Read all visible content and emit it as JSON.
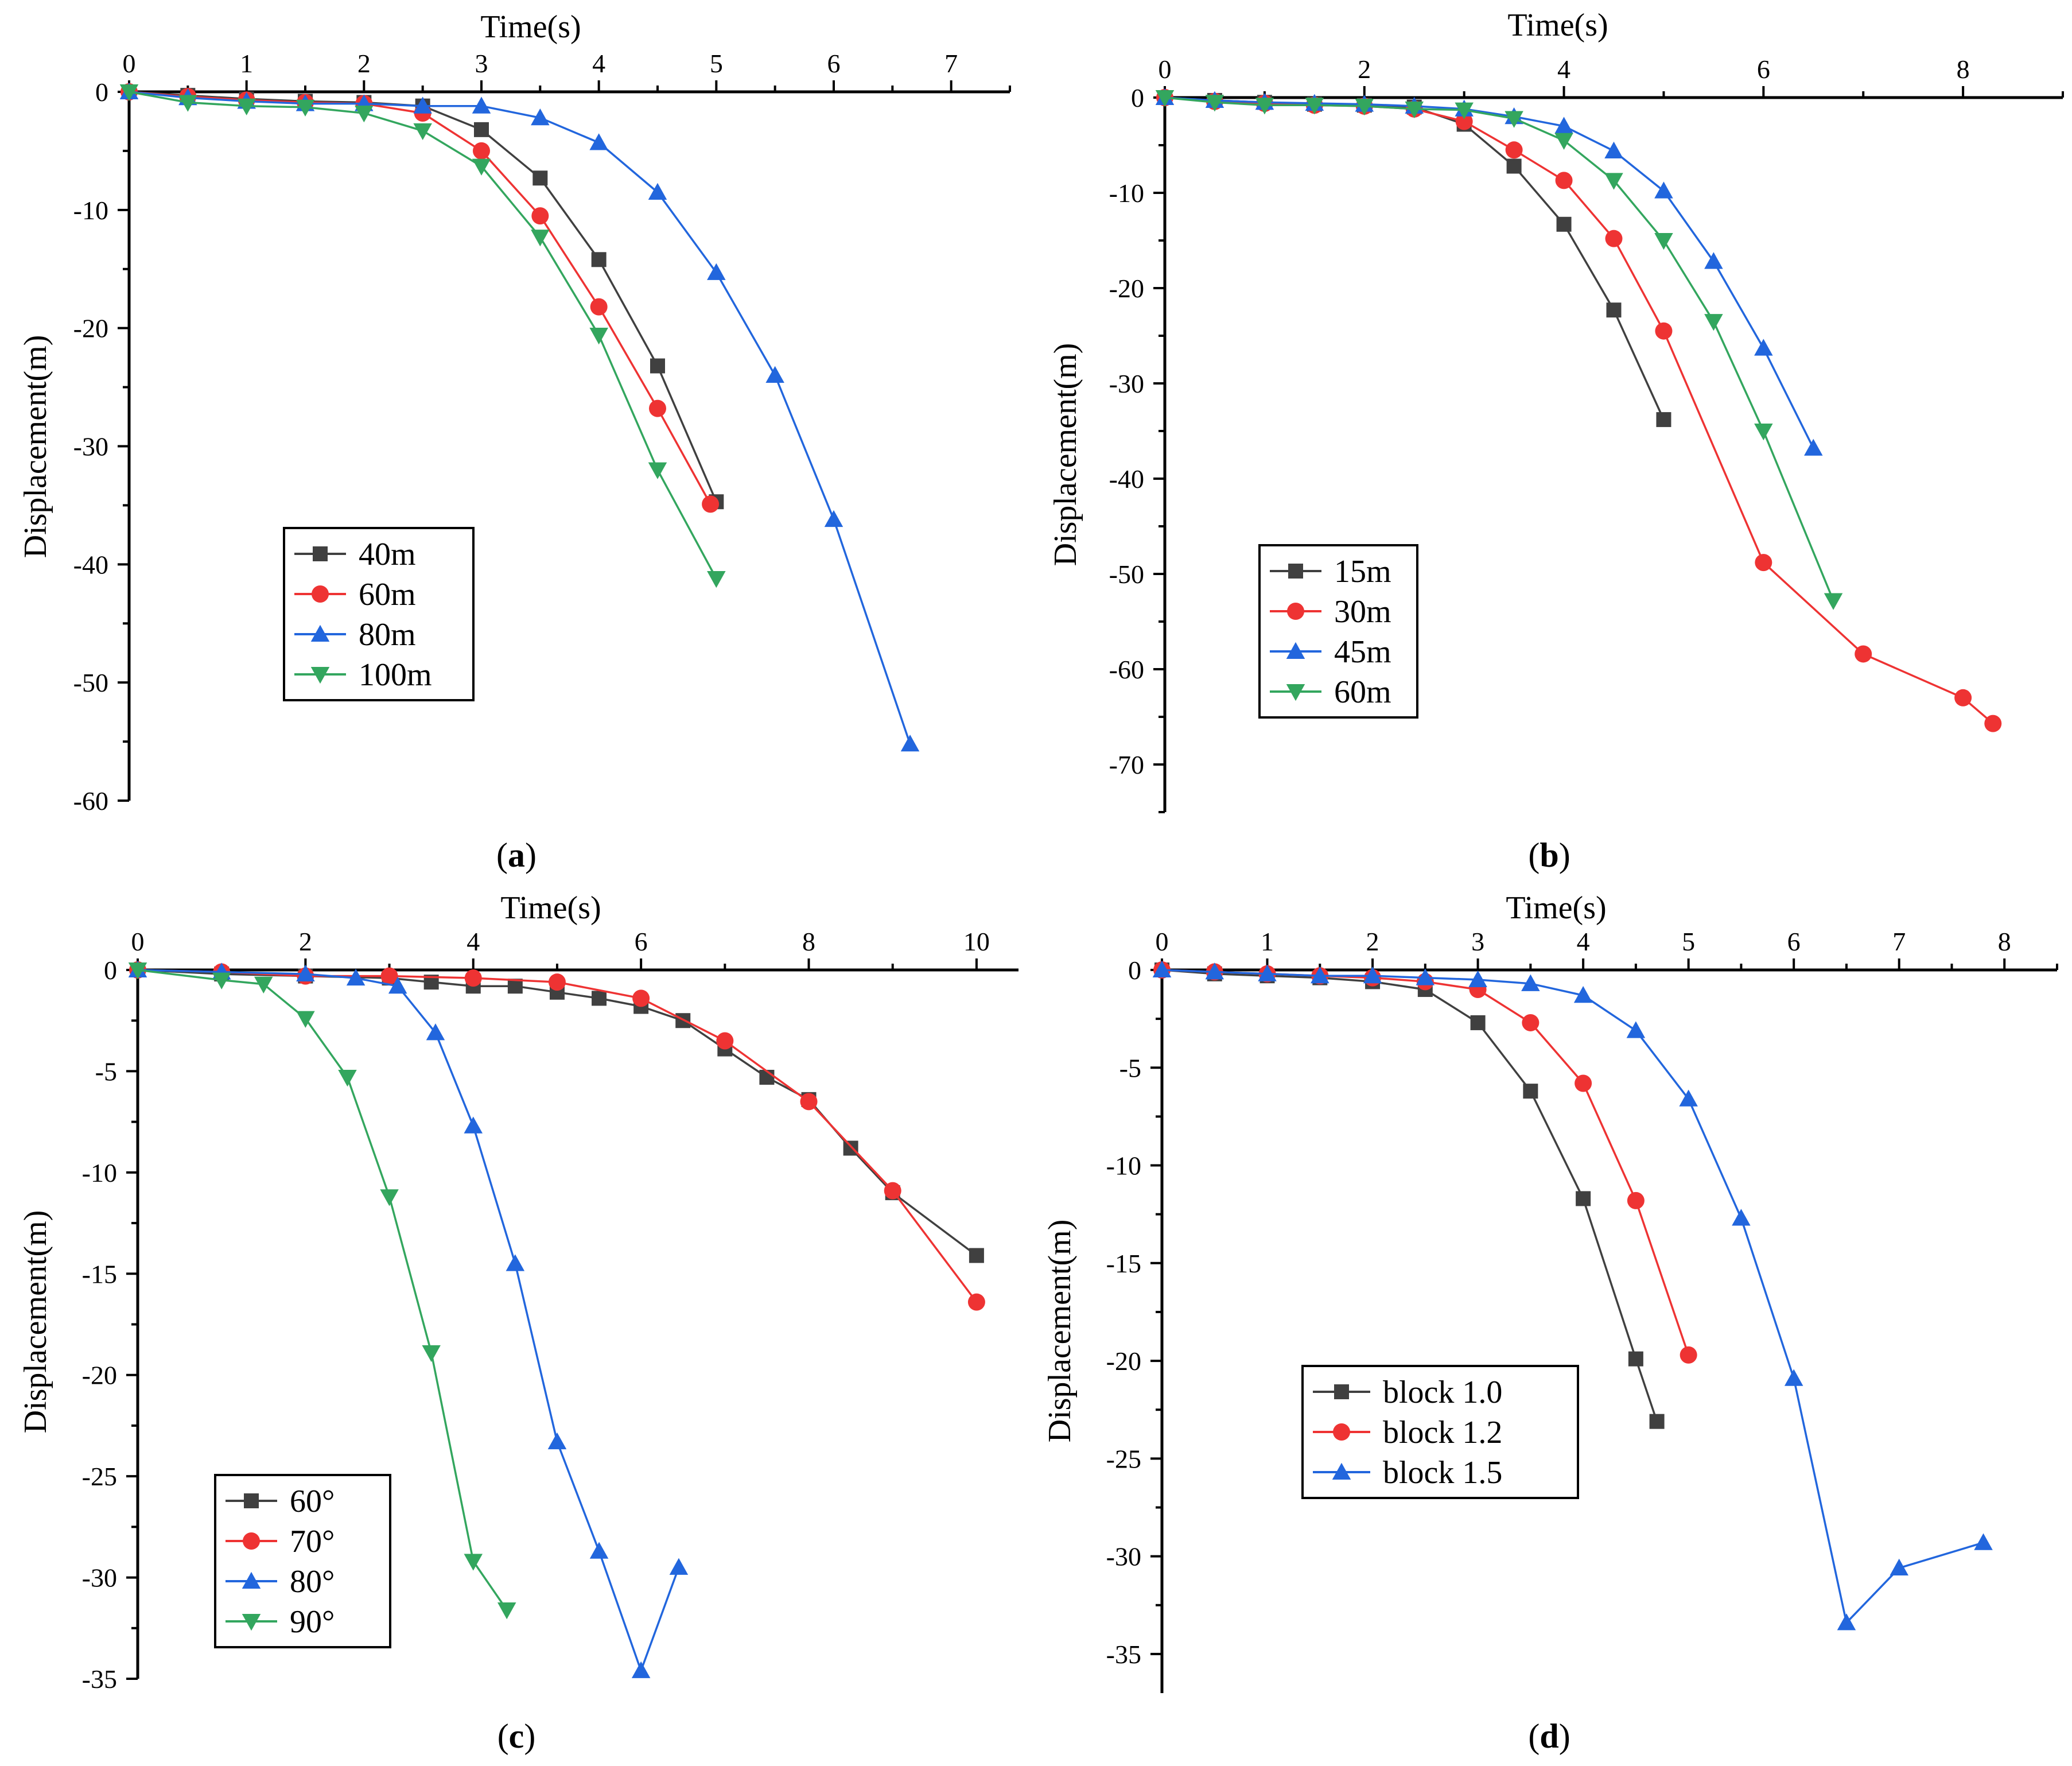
{
  "figure": {
    "colors": {
      "black": "#404040",
      "red": "#ee3333",
      "blue": "#2266dd",
      "green": "#33a65e"
    }
  },
  "chart_data": [
    {
      "panel": "(a)",
      "panel_letter": "a",
      "type": "line",
      "xlabel": "Time(s)",
      "ylabel": "Displacement(m)",
      "xlim": [
        0,
        7.5
      ],
      "ylim": [
        -60,
        0
      ],
      "xticks": [
        0,
        1,
        2,
        3,
        4,
        5,
        6,
        7
      ],
      "yticks": [
        0,
        -10,
        -20,
        -30,
        -40,
        -50,
        -60
      ],
      "legend_font": "serif",
      "series": [
        {
          "name": "40m",
          "color": "#404040",
          "marker": "square",
          "x": [
            0,
            0.5,
            1,
            1.5,
            2,
            2.5,
            3,
            3.5,
            4,
            4.5,
            5
          ],
          "y": [
            0,
            -0.3,
            -0.6,
            -0.8,
            -0.9,
            -1.2,
            -3.2,
            -7.3,
            -14.2,
            -23.2,
            -34.7
          ]
        },
        {
          "name": "60m",
          "color": "#ee3333",
          "marker": "circle",
          "x": [
            0,
            0.5,
            1,
            1.5,
            2,
            2.5,
            3,
            3.5,
            4,
            4.5,
            4.95
          ],
          "y": [
            0,
            -0.4,
            -0.7,
            -0.9,
            -1.0,
            -1.8,
            -5.0,
            -10.5,
            -18.2,
            -26.8,
            -34.9
          ]
        },
        {
          "name": "80m",
          "color": "#2266dd",
          "marker": "triangle-up",
          "x": [
            0,
            0.5,
            1,
            1.5,
            2,
            2.5,
            3,
            3.5,
            4,
            4.5,
            5,
            5.5,
            6,
            6.65
          ],
          "y": [
            0,
            -0.5,
            -0.8,
            -1.0,
            -1.0,
            -1.2,
            -1.2,
            -2.2,
            -4.3,
            -8.5,
            -15.3,
            -24.0,
            -36.2,
            -55.2
          ]
        },
        {
          "name": "100m",
          "color": "#33a65e",
          "marker": "triangle-down",
          "x": [
            0,
            0.5,
            1,
            1.5,
            2,
            2.5,
            3,
            3.5,
            4,
            4.5,
            5
          ],
          "y": [
            0,
            -0.9,
            -1.2,
            -1.3,
            -1.8,
            -3.3,
            -6.3,
            -12.3,
            -20.6,
            -32.0,
            -41.2
          ]
        }
      ]
    },
    {
      "panel": "(b)",
      "panel_letter": "b",
      "type": "line",
      "xlabel": "Time(s)",
      "ylabel": "Displacement(m)",
      "xlim": [
        0,
        9
      ],
      "ylim": [
        -75,
        0
      ],
      "xticks": [
        0,
        2,
        4,
        6,
        8
      ],
      "yticks": [
        0,
        -10,
        -20,
        -30,
        -40,
        -50,
        -60,
        -70
      ],
      "legend_font": "serif",
      "series": [
        {
          "name": "15m",
          "color": "#404040",
          "marker": "square",
          "x": [
            0,
            0.5,
            1,
            1.5,
            2,
            2.5,
            3,
            3.5,
            4,
            4.5,
            5
          ],
          "y": [
            0,
            -0.3,
            -0.5,
            -0.7,
            -0.8,
            -1.0,
            -2.8,
            -7.2,
            -13.3,
            -22.3,
            -33.8
          ]
        },
        {
          "name": "30m",
          "color": "#ee3333",
          "marker": "circle",
          "x": [
            0,
            0.5,
            1,
            1.5,
            2,
            2.5,
            3,
            3.5,
            4,
            4.5,
            5,
            6,
            7,
            8,
            8.3
          ],
          "y": [
            0,
            -0.4,
            -0.6,
            -0.8,
            -0.9,
            -1.2,
            -2.5,
            -5.5,
            -8.7,
            -14.8,
            -24.5,
            -48.8,
            -58.4,
            -63.0,
            -65.7
          ]
        },
        {
          "name": "45m",
          "color": "#2266dd",
          "marker": "triangle-up",
          "x": [
            0,
            0.5,
            1,
            1.5,
            2,
            2.5,
            3,
            3.5,
            4,
            4.5,
            5,
            5.5,
            6,
            6.5
          ],
          "y": [
            0,
            -0.3,
            -0.5,
            -0.6,
            -0.7,
            -0.9,
            -1.2,
            -2.0,
            -3.0,
            -5.6,
            -9.8,
            -17.2,
            -26.3,
            -36.8
          ]
        },
        {
          "name": "60m",
          "color": "#33a65e",
          "marker": "triangle-down",
          "x": [
            0,
            0.5,
            1,
            1.5,
            2,
            2.5,
            3,
            3.5,
            4,
            4.5,
            5,
            5.5,
            6,
            6.7
          ],
          "y": [
            0,
            -0.5,
            -0.8,
            -0.8,
            -0.9,
            -1.2,
            -1.3,
            -2.2,
            -4.5,
            -8.7,
            -15.0,
            -23.5,
            -35.0,
            -52.8
          ]
        }
      ]
    },
    {
      "panel": "(c)",
      "panel_letter": "c",
      "type": "line",
      "xlabel": "Time(s)",
      "ylabel": "Displacement(m)",
      "xlim": [
        0,
        10.5
      ],
      "ylim": [
        -35,
        0
      ],
      "xticks": [
        0,
        2,
        4,
        6,
        8,
        10
      ],
      "yticks": [
        0,
        -5,
        -10,
        -15,
        -20,
        -25,
        -30,
        -35
      ],
      "legend_font": "serif",
      "series": [
        {
          "name": "60°",
          "color": "#404040",
          "marker": "square",
          "x": [
            0,
            1,
            2,
            3,
            3.5,
            4,
            4.5,
            5,
            5.5,
            6,
            6.5,
            7,
            7.5,
            8,
            8.5,
            9,
            10
          ],
          "y": [
            0,
            -0.2,
            -0.3,
            -0.4,
            -0.6,
            -0.8,
            -0.8,
            -1.1,
            -1.4,
            -1.8,
            -2.5,
            -3.9,
            -5.3,
            -6.4,
            -8.8,
            -11.0,
            -14.1
          ]
        },
        {
          "name": "70°",
          "color": "#ee3333",
          "marker": "circle",
          "x": [
            0,
            1,
            2,
            3,
            4,
            5,
            6,
            7,
            8,
            9,
            10
          ],
          "y": [
            0,
            -0.1,
            -0.3,
            -0.3,
            -0.4,
            -0.6,
            -1.4,
            -3.5,
            -6.5,
            -10.9,
            -16.4
          ]
        },
        {
          "name": "80°",
          "color": "#2266dd",
          "marker": "triangle-up",
          "x": [
            0,
            1,
            2,
            2.6,
            3.1,
            3.55,
            4,
            4.5,
            5,
            5.5,
            6,
            6.45
          ],
          "y": [
            0,
            -0.1,
            -0.2,
            -0.4,
            -0.8,
            -3.1,
            -7.7,
            -14.5,
            -23.3,
            -28.7,
            -34.6,
            -29.5
          ]
        },
        {
          "name": "90°",
          "color": "#33a65e",
          "marker": "triangle-down",
          "x": [
            0,
            1,
            1.5,
            2,
            2.5,
            3,
            3.5,
            4,
            4.4
          ],
          "y": [
            0,
            -0.5,
            -0.7,
            -2.4,
            -5.3,
            -11.2,
            -18.9,
            -29.2,
            -31.6
          ]
        }
      ]
    },
    {
      "panel": "(d)",
      "panel_letter": "d",
      "type": "line",
      "xlabel": "Time(s)",
      "ylabel": "Displacement(m)",
      "xlim": [
        0,
        8.5
      ],
      "ylim": [
        -37,
        0
      ],
      "xticks": [
        0,
        1,
        2,
        3,
        4,
        5,
        6,
        7,
        8
      ],
      "yticks": [
        0,
        -5,
        -10,
        -15,
        -20,
        -25,
        -30,
        -35
      ],
      "legend_font": "mono",
      "series": [
        {
          "name": "block 1.0",
          "color": "#404040",
          "marker": "square",
          "x": [
            0,
            0.5,
            1,
            1.5,
            2,
            2.5,
            3,
            3.5,
            4,
            4.5,
            4.7
          ],
          "y": [
            0,
            -0.2,
            -0.3,
            -0.4,
            -0.6,
            -1.0,
            -2.7,
            -6.2,
            -11.7,
            -19.9,
            -23.1
          ]
        },
        {
          "name": "block 1.2",
          "color": "#ee3333",
          "marker": "circle",
          "x": [
            0,
            0.5,
            1,
            1.5,
            2,
            2.5,
            3,
            3.5,
            4,
            4.5,
            5
          ],
          "y": [
            0,
            -0.1,
            -0.2,
            -0.3,
            -0.4,
            -0.6,
            -1.0,
            -2.7,
            -5.8,
            -11.8,
            -19.7
          ]
        },
        {
          "name": "block 1.5",
          "color": "#2266dd",
          "marker": "triangle-up",
          "x": [
            0,
            0.5,
            1,
            1.5,
            2,
            2.5,
            3,
            3.5,
            4,
            4.5,
            5,
            5.5,
            6,
            6.5,
            7,
            7.8
          ],
          "y": [
            0,
            -0.1,
            -0.2,
            -0.3,
            -0.3,
            -0.4,
            -0.5,
            -0.7,
            -1.3,
            -3.1,
            -6.6,
            -12.7,
            -20.9,
            -33.4,
            -30.6,
            -29.3
          ]
        }
      ]
    }
  ]
}
